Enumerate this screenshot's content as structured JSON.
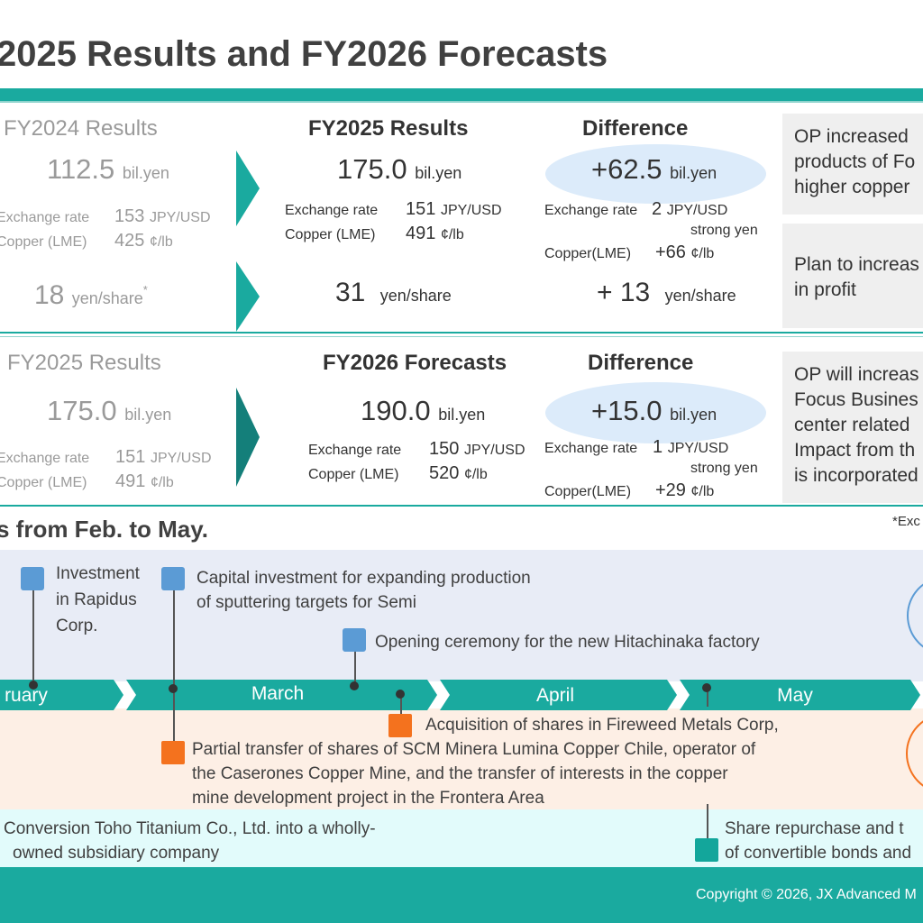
{
  "title": "2025 Results and FY2026 Forecasts",
  "section1": {
    "col1_header": "FY2024 Results",
    "col2_header": "FY2025 Results",
    "col3_header": "Difference",
    "op": {
      "prev": "112.5",
      "curr": "175.0",
      "diff": "+62.5",
      "unit": "bil.yen"
    },
    "fx_label": "Exchange rate",
    "cu_label": "Copper (LME)",
    "cu_label_diff": "Copper(LME)",
    "fx": {
      "prev": "153",
      "curr": "151",
      "diff": "2",
      "unit": "JPY/USD",
      "diff_note": "strong yen"
    },
    "cu": {
      "prev": "425",
      "curr": "491",
      "diff": "+66",
      "unit": "¢/lb"
    },
    "div": {
      "prev": "18",
      "curr": "31",
      "diff": "+ 13",
      "unit": "yen/share",
      "mark": "*"
    },
    "note1": [
      "OP increased",
      "products of Fo",
      "higher copper"
    ],
    "note2": [
      "Plan to increas",
      "in profit"
    ]
  },
  "section2": {
    "col1_header": "FY2025 Results",
    "col2_header": "FY2026 Forecasts",
    "col3_header": "Difference",
    "op": {
      "prev": "175.0",
      "curr": "190.0",
      "diff": "+15.0",
      "unit": "bil.yen"
    },
    "fx": {
      "prev": "151",
      "curr": "150",
      "diff": "1",
      "unit": "JPY/USD",
      "diff_note": "strong yen"
    },
    "cu": {
      "prev": "491",
      "curr": "520",
      "diff": "+29",
      "unit": "¢/lb"
    },
    "note": [
      "OP will increas",
      "Focus Busines",
      "center related",
      "Impact from th",
      "is incorporated"
    ]
  },
  "timeline": {
    "title": "s from Feb. to May.",
    "exc_note": "*Exc",
    "months": [
      "ruary",
      "March",
      "April",
      "May"
    ],
    "events_top": [
      [
        "Investment",
        "in Rapidus",
        "Corp."
      ],
      [
        "Capital investment for expanding production",
        "of sputtering targets for Semi"
      ],
      [
        "Opening ceremony for the new Hitachinaka factory"
      ]
    ],
    "events_bottom": [
      [
        "Acquisition of shares in Fireweed Metals Corp,"
      ],
      [
        "Partial transfer of shares of SCM Minera Lumina Copper Chile, operator of",
        "the Caserones Copper Mine, and the transfer of interests in the copper",
        "mine development project in the Frontera Area"
      ]
    ],
    "events_cyan": [
      [
        "Conversion Toho Titanium Co., Ltd. into a wholly-",
        "owned subsidiary company"
      ],
      [
        "Share repurchase and t",
        "of convertible bonds and"
      ]
    ]
  },
  "footer": "Copyright © 2026, JX Advanced M"
}
